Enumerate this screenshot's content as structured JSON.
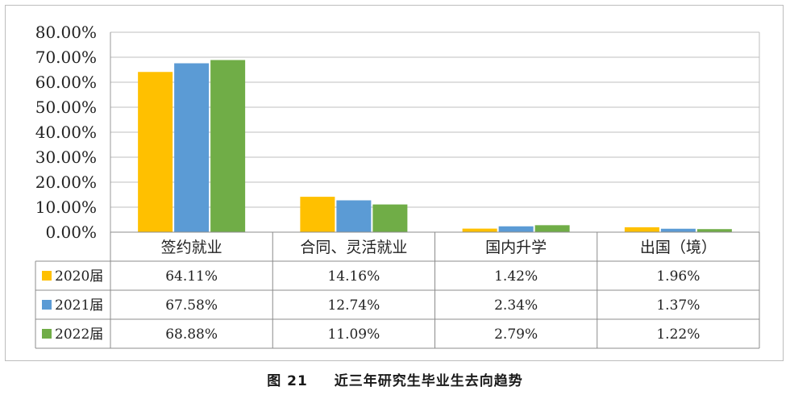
{
  "chart_data": {
    "type": "bar",
    "title": "",
    "xlabel": "",
    "ylabel": "",
    "ylim": [
      0,
      80
    ],
    "y_tick_labels": [
      "0.00%",
      "10.00%",
      "20.00%",
      "30.00%",
      "40.00%",
      "50.00%",
      "60.00%",
      "70.00%",
      "80.00%"
    ],
    "grid": true,
    "legend": "in data table (left)",
    "categories": [
      "签约就业",
      "合同、灵活就业",
      "国内升学",
      "出国（境）"
    ],
    "series": [
      {
        "name": "2020届",
        "color": "#ffc000",
        "values": [
          64.11,
          14.16,
          1.42,
          1.96
        ],
        "labels": [
          "64.11%",
          "14.16%",
          "1.42%",
          "1.96%"
        ]
      },
      {
        "name": "2021届",
        "color": "#5b9bd5",
        "values": [
          67.58,
          12.74,
          2.34,
          1.37
        ],
        "labels": [
          "67.58%",
          "12.74%",
          "2.34%",
          "1.37%"
        ]
      },
      {
        "name": "2022届",
        "color": "#70ad47",
        "values": [
          68.88,
          11.09,
          2.79,
          1.22
        ],
        "labels": [
          "68.88%",
          "11.09%",
          "2.79%",
          "1.22%"
        ]
      }
    ]
  },
  "caption": {
    "figure_number": "图 21",
    "text": "近三年研究生毕业生去向趋势"
  }
}
